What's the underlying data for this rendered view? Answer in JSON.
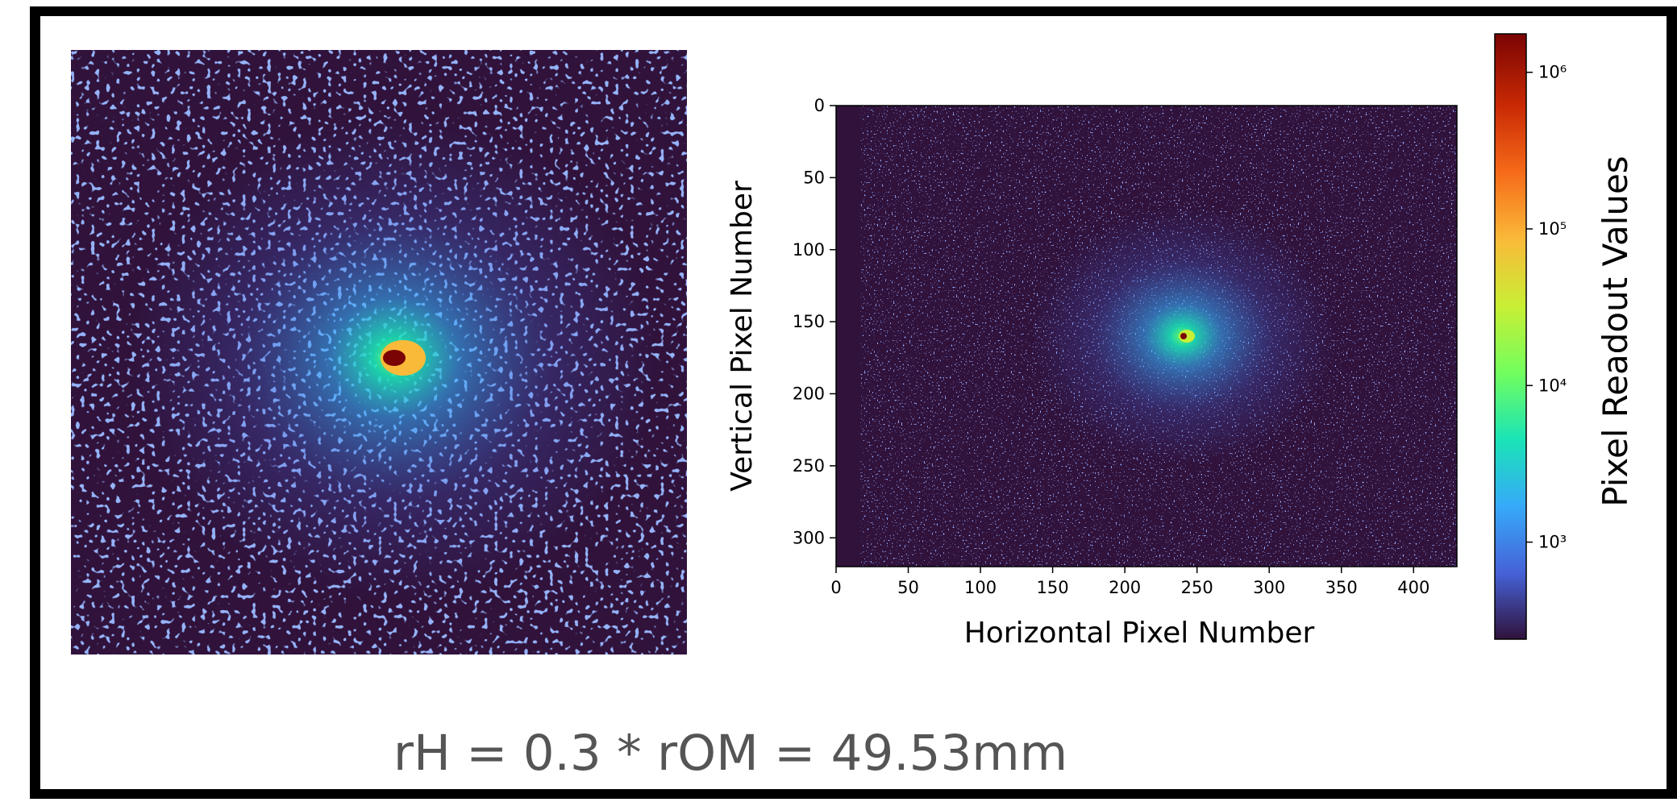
{
  "chart_data": {
    "type": "heatmap",
    "x_label": "Horizontal Pixel Number",
    "y_label": "Vertical Pixel Number",
    "xlim": [
      0,
      430
    ],
    "ylim": [
      320,
      0
    ],
    "xticks": [
      0,
      50,
      100,
      150,
      200,
      250,
      300,
      350,
      400
    ],
    "yticks": [
      0,
      50,
      100,
      150,
      200,
      250,
      300
    ],
    "colorbar": {
      "label": "Pixel Readout Values",
      "colormap": "turbo",
      "log": true,
      "lim": [
        240,
        1760000
      ],
      "ticks": [
        {
          "value": 1000,
          "label": "10³"
        },
        {
          "value": 10000,
          "label": "10⁴"
        },
        {
          "value": 100000,
          "label": "10⁵"
        },
        {
          "value": 1000000,
          "label": "10⁶"
        }
      ]
    }
  },
  "caption": "rH = 0.3 * rOM = 49.53mm"
}
